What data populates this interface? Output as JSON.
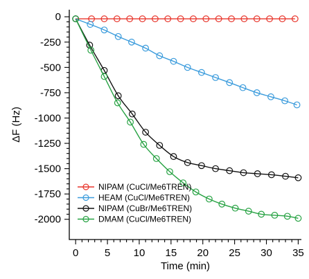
{
  "chart_data": {
    "type": "line",
    "title": "",
    "xlabel": "Time (min)",
    "ylabel": "ΔF (Hz)",
    "xlim": [
      -1,
      35.5
    ],
    "ylim": [
      -2200,
      70
    ],
    "xticks": [
      0,
      5,
      10,
      15,
      20,
      25,
      30,
      35
    ],
    "yticks": [
      0,
      -250,
      -500,
      -750,
      -1000,
      -1250,
      -1500,
      -1750,
      -2000
    ],
    "grid": false,
    "legend_position": "bottom-left",
    "series": [
      {
        "name": "NIPAM (CuCl/Me6TREN)",
        "color": "#e8352b",
        "x": [
          0,
          2.5,
          4.5,
          6.5,
          8.5,
          10.5,
          12.5,
          14.5,
          16.5,
          18.5,
          20.5,
          22.5,
          24.5,
          26.5,
          28.5,
          30.5,
          32.5,
          34.5
        ],
        "y": [
          -20,
          -20,
          -20,
          -20,
          -20,
          -20,
          -20,
          -20,
          -20,
          -20,
          -20,
          -20,
          -20,
          -20,
          -20,
          -20,
          -20,
          -20
        ]
      },
      {
        "name": "HEAM (CuCl/Me6TREN)",
        "color": "#3a9bdc",
        "x": [
          0,
          2.3,
          4.5,
          6.7,
          8.8,
          11,
          13.2,
          15.4,
          17.6,
          19.8,
          22,
          24.2,
          26.3,
          28.5,
          30.7,
          32.9,
          34.8
        ],
        "y": [
          -20,
          -75,
          -130,
          -195,
          -250,
          -310,
          -385,
          -440,
          -500,
          -550,
          -600,
          -650,
          -700,
          -750,
          -790,
          -830,
          -870
        ]
      },
      {
        "name": "NIPAM (CuBr/Me6TREN)",
        "color": "#111111",
        "x": [
          0,
          2.2,
          4.5,
          6.7,
          8.9,
          11,
          13.2,
          15.4,
          17.6,
          19.8,
          22,
          24.2,
          26.4,
          28.6,
          30.8,
          33,
          35
        ],
        "y": [
          -20,
          -280,
          -530,
          -780,
          -960,
          -1140,
          -1270,
          -1380,
          -1440,
          -1470,
          -1500,
          -1520,
          -1540,
          -1550,
          -1560,
          -1575,
          -1590
        ]
      },
      {
        "name": "DMAM (CuCl/Me6TREN)",
        "color": "#27a243",
        "x": [
          0,
          2.4,
          4.5,
          6.6,
          8.6,
          10.7,
          12.7,
          14.8,
          16.9,
          18.9,
          21,
          23,
          25.1,
          27.2,
          29.2,
          31.3,
          33.3,
          35
        ],
        "y": [
          -20,
          -330,
          -590,
          -850,
          -1040,
          -1260,
          -1400,
          -1530,
          -1640,
          -1730,
          -1800,
          -1850,
          -1890,
          -1920,
          -1950,
          -1960,
          -1970,
          -1990
        ]
      }
    ]
  }
}
